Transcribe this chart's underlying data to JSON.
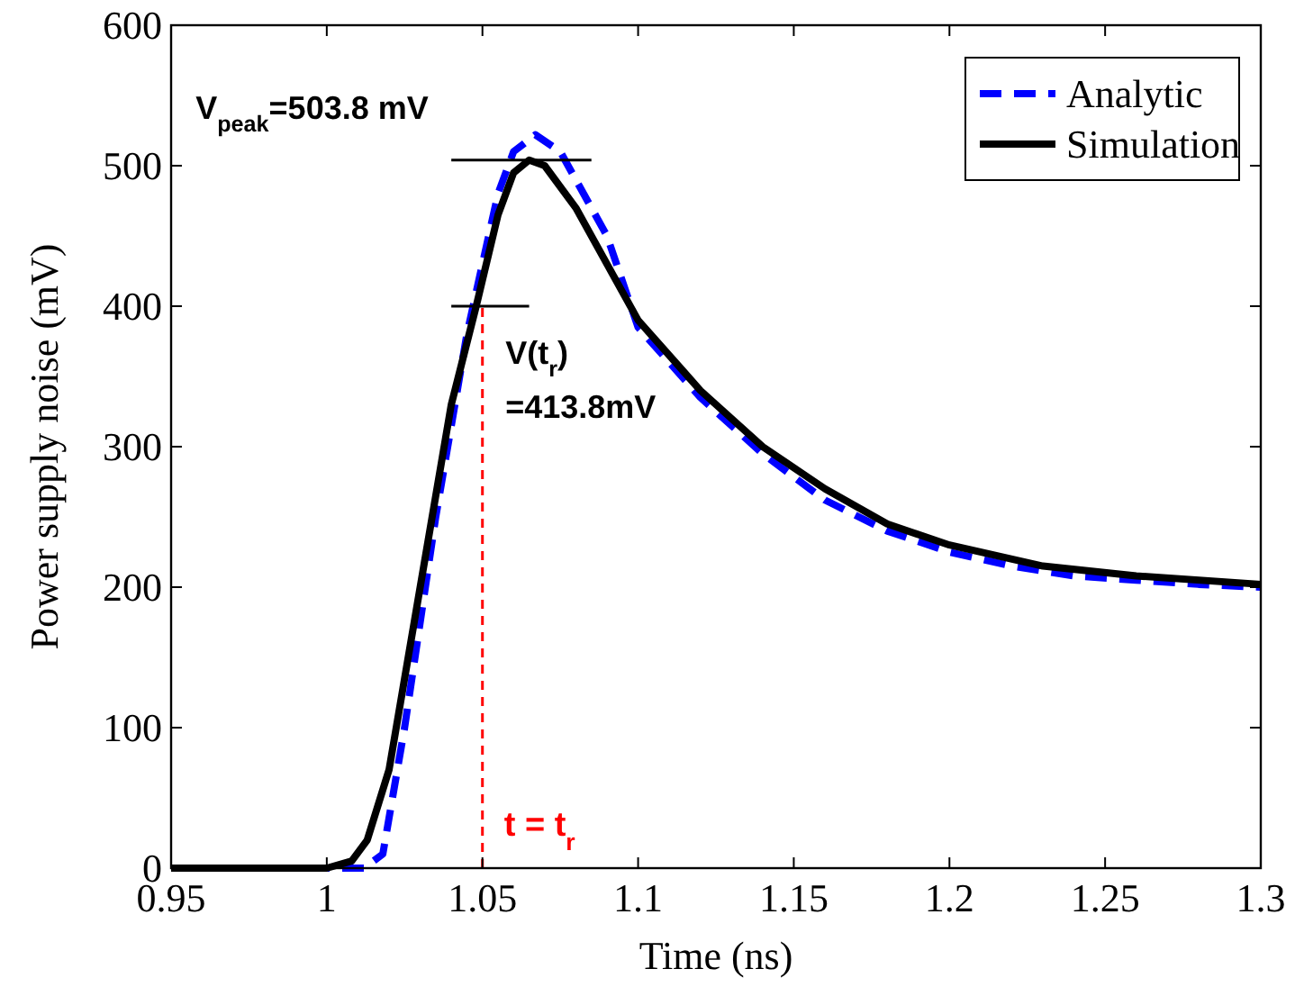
{
  "chart_data": {
    "type": "line",
    "xlabel": "Time (ns)",
    "ylabel": "Power supply noise (mV)",
    "xlim": [
      0.95,
      1.3
    ],
    "xticks": [
      0.95,
      1,
      1.05,
      1.1,
      1.15,
      1.2,
      1.25,
      1.3
    ],
    "ylim": [
      0,
      600
    ],
    "yticks": [
      0,
      100,
      200,
      300,
      400,
      500,
      600
    ],
    "legend": "top right",
    "grid": false,
    "series": [
      {
        "name": "Analytic",
        "color": "#0000ff",
        "line_style": "dashed",
        "x": [
          0.95,
          1.0,
          1.012,
          1.018,
          1.025,
          1.035,
          1.045,
          1.05,
          1.055,
          1.06,
          1.067,
          1.075,
          1.09,
          1.1,
          1.12,
          1.14,
          1.16,
          1.18,
          1.2,
          1.22,
          1.24,
          1.26,
          1.28,
          1.3
        ],
        "values": [
          0,
          0,
          0,
          10,
          100,
          250,
          380,
          430,
          480,
          510,
          522,
          510,
          450,
          385,
          335,
          295,
          262,
          240,
          225,
          215,
          208,
          205,
          202,
          200
        ]
      },
      {
        "name": "Simulation",
        "color": "#000000",
        "line_style": "solid",
        "x": [
          0.95,
          1.0,
          1.008,
          1.013,
          1.02,
          1.03,
          1.04,
          1.048,
          1.055,
          1.06,
          1.065,
          1.07,
          1.08,
          1.1,
          1.12,
          1.14,
          1.16,
          1.18,
          1.2,
          1.23,
          1.26,
          1.3
        ],
        "values": [
          0,
          0,
          5,
          20,
          70,
          200,
          330,
          400,
          465,
          495,
          504,
          500,
          470,
          390,
          340,
          300,
          270,
          245,
          230,
          215,
          208,
          202
        ]
      },
      {
        "color": "#000000",
        "line_style": "solid",
        "x": [
          1.04,
          1.085
        ],
        "values": [
          504,
          504
        ]
      },
      {
        "color": "#000000",
        "line_style": "solid",
        "x": [
          1.04,
          1.065
        ],
        "values": [
          400,
          400
        ]
      }
    ],
    "ref_lines": [
      {
        "axis": "x",
        "value": 1.05,
        "label": "t = t$_{r}$",
        "color": "#ff0000",
        "line_style": "dashed"
      }
    ],
    "annotations": [
      "V$_{peak}$=503.8 mV",
      "V(t$_{r}$)\n=413.8mV"
    ]
  }
}
